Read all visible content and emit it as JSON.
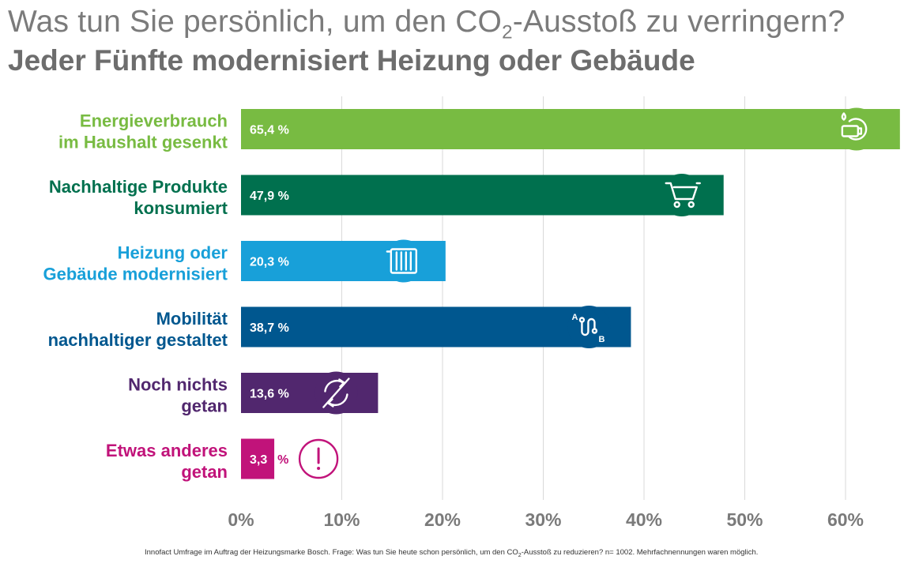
{
  "header": {
    "title_pre": "Was tun Sie persönlich, um den CO",
    "title_sub": "2",
    "title_post": "-Ausstoß zu verringern?",
    "subtitle": "Jeder Fünfte modernisiert Heizung oder Gebäude"
  },
  "footnote": {
    "pre": "Innofact Umfrage im Auftrag der Heizungsmarke Bosch. Frage:  Was tun Sie heute schon persönlich, um den CO",
    "sub": "2",
    "post": "-Ausstoß zu reduzieren? n= 1002. Mehrfachnennungen waren möglich."
  },
  "chart_data": {
    "type": "bar",
    "orientation": "horizontal",
    "categories": [
      [
        "Energieverbrauch",
        "im Haushalt gesenkt"
      ],
      [
        "Nachhaltige Produkte",
        "konsumiert"
      ],
      [
        "Heizung oder",
        "Gebäude modernisiert"
      ],
      [
        "Mobilität",
        "nachhaltiger gestaltet"
      ],
      [
        "Noch nichts",
        "getan"
      ],
      [
        "Etwas anderes",
        "getan"
      ]
    ],
    "values": [
      65.4,
      47.9,
      20.3,
      38.7,
      13.6,
      3.3
    ],
    "value_labels": [
      "65,4 %",
      "47,9 %",
      "20,3 %",
      "38,7 %",
      "13,6 %",
      "3,3"
    ],
    "value_label_suffix_outside": "%",
    "colors": [
      "#78bb42",
      "#00704e",
      "#18a0d9",
      "#00578f",
      "#51276e",
      "#c1137a"
    ],
    "icons": [
      "dishwasher-icon",
      "shopping-cart-icon",
      "radiator-icon",
      "route-a-to-b-icon",
      "no-change-icon",
      "exclamation-icon"
    ],
    "x_ticks": [
      "0%",
      "10%",
      "20%",
      "30%",
      "40%",
      "50%",
      "60%"
    ],
    "xlim": [
      0,
      65
    ],
    "grid": "vertical",
    "legend": "none"
  }
}
